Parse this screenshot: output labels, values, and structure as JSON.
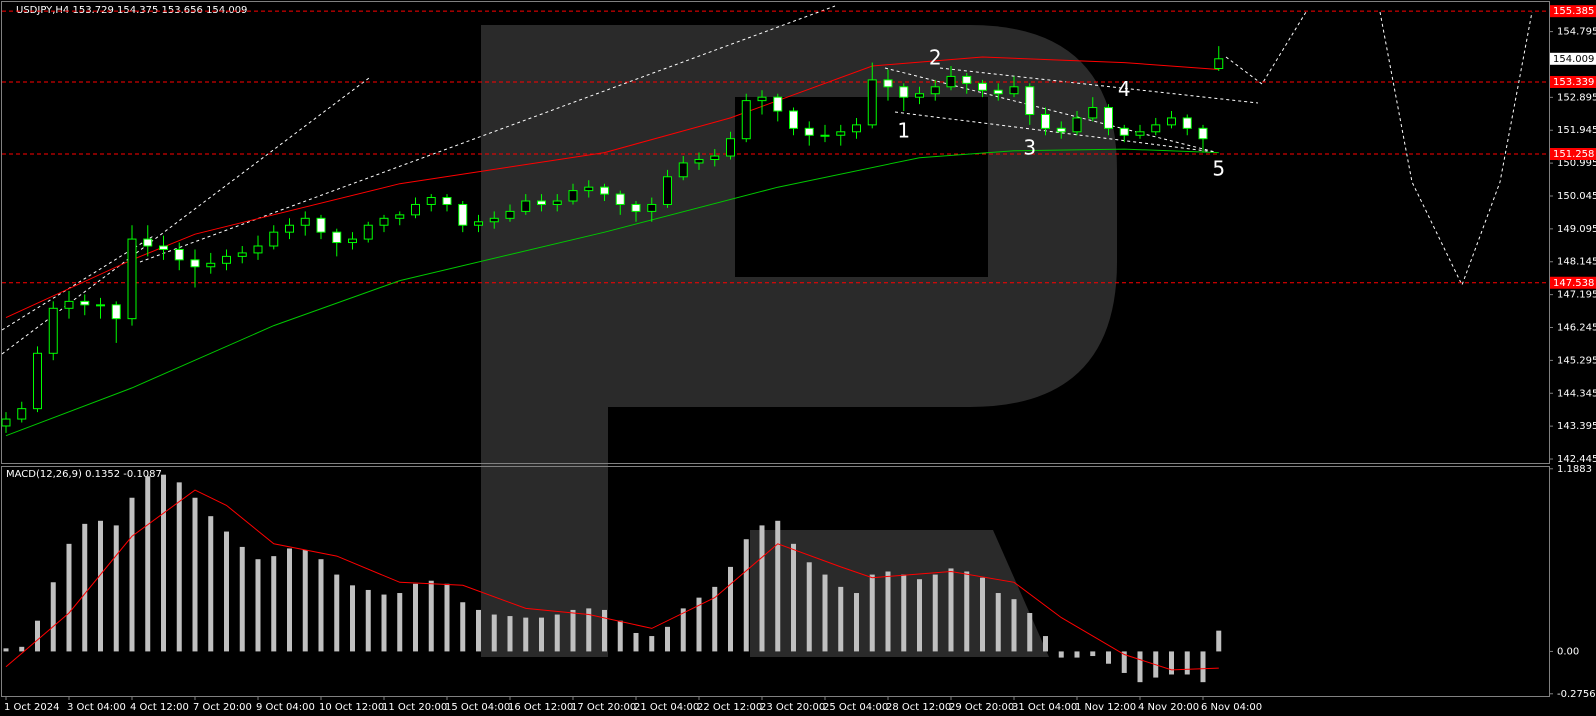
{
  "chart_data": [
    {
      "type": "candlestick",
      "title": "USDJPY,H4  153.729 154.375 153.656 154.009",
      "categories": [
        "1 Oct 2024",
        null,
        null,
        null,
        "3 Oct 04:00",
        null,
        null,
        null,
        "4 Oct 12:00",
        null,
        null,
        null,
        "7 Oct 20:00",
        null,
        null,
        null,
        "9 Oct 04:00",
        null,
        null,
        null,
        "10 Oct 12:00",
        null,
        null,
        null,
        "11 Oct 20:00",
        null,
        null,
        null,
        "15 Oct 04:00",
        null,
        null,
        null,
        "16 Oct 12:00",
        null,
        null,
        null,
        "17 Oct 20:00",
        null,
        null,
        null,
        "21 Oct 04:00",
        null,
        null,
        null,
        "22 Oct 12:00",
        null,
        null,
        null,
        "23 Oct 20:00",
        null,
        null,
        null,
        "25 Oct 04:00",
        null,
        null,
        null,
        "28 Oct 12:00",
        null,
        null,
        null,
        "29 Oct 20:00",
        null,
        null,
        null,
        "31 Oct 04:00",
        null,
        null,
        null,
        "1 Nov 12:00",
        null,
        null,
        null,
        "4 Nov 20:00",
        null,
        null,
        null,
        "6 Nov 04:00",
        null
      ],
      "candles": [
        [
          143.4,
          143.8,
          143.2,
          143.6
        ],
        [
          143.6,
          144.1,
          143.5,
          143.9
        ],
        [
          143.9,
          145.7,
          143.8,
          145.5
        ],
        [
          145.5,
          147.0,
          145.3,
          146.8
        ],
        [
          146.8,
          147.3,
          146.5,
          147.0
        ],
        [
          147.0,
          147.2,
          146.6,
          146.9
        ],
        [
          146.9,
          147.1,
          146.5,
          146.9
        ],
        [
          146.9,
          147.0,
          145.8,
          146.5
        ],
        [
          146.5,
          149.2,
          146.3,
          148.8
        ],
        [
          148.8,
          149.2,
          148.3,
          148.6
        ],
        [
          148.6,
          148.9,
          148.2,
          148.5
        ],
        [
          148.5,
          148.7,
          147.9,
          148.2
        ],
        [
          148.2,
          148.5,
          147.4,
          148.0
        ],
        [
          148.0,
          148.4,
          147.8,
          148.1
        ],
        [
          148.1,
          148.5,
          147.9,
          148.3
        ],
        [
          148.3,
          148.6,
          148.1,
          148.4
        ],
        [
          148.4,
          148.9,
          148.2,
          148.6
        ],
        [
          148.6,
          149.2,
          148.5,
          149.0
        ],
        [
          149.0,
          149.4,
          148.8,
          149.2
        ],
        [
          149.2,
          149.6,
          148.9,
          149.4
        ],
        [
          149.4,
          149.5,
          148.8,
          149.0
        ],
        [
          149.0,
          149.1,
          148.3,
          148.7
        ],
        [
          148.7,
          149.0,
          148.5,
          148.8
        ],
        [
          148.8,
          149.3,
          148.7,
          149.2
        ],
        [
          149.2,
          149.5,
          149.0,
          149.4
        ],
        [
          149.4,
          149.6,
          149.2,
          149.5
        ],
        [
          149.5,
          150.0,
          149.4,
          149.8
        ],
        [
          149.8,
          150.1,
          149.6,
          150.0
        ],
        [
          150.0,
          150.1,
          149.6,
          149.8
        ],
        [
          149.8,
          149.9,
          149.0,
          149.2
        ],
        [
          149.2,
          149.5,
          149.0,
          149.3
        ],
        [
          149.3,
          149.6,
          149.1,
          149.4
        ],
        [
          149.4,
          149.8,
          149.3,
          149.6
        ],
        [
          149.6,
          150.1,
          149.5,
          149.9
        ],
        [
          149.9,
          150.1,
          149.6,
          149.8
        ],
        [
          149.8,
          150.1,
          149.6,
          149.9
        ],
        [
          149.9,
          150.4,
          149.8,
          150.2
        ],
        [
          150.2,
          150.5,
          150.0,
          150.3
        ],
        [
          150.3,
          150.4,
          149.9,
          150.1
        ],
        [
          150.1,
          150.2,
          149.5,
          149.8
        ],
        [
          149.8,
          149.9,
          149.3,
          149.6
        ],
        [
          149.6,
          150.0,
          149.3,
          149.8
        ],
        [
          149.8,
          150.8,
          149.7,
          150.6
        ],
        [
          150.6,
          151.2,
          150.5,
          151.0
        ],
        [
          151.0,
          151.3,
          150.8,
          151.1
        ],
        [
          151.1,
          151.4,
          150.9,
          151.2
        ],
        [
          151.2,
          151.9,
          151.1,
          151.7
        ],
        [
          151.7,
          153.0,
          151.6,
          152.8
        ],
        [
          152.8,
          153.1,
          152.4,
          152.9
        ],
        [
          152.9,
          153.0,
          152.2,
          152.5
        ],
        [
          152.5,
          152.6,
          151.8,
          152.0
        ],
        [
          152.0,
          152.2,
          151.5,
          151.8
        ],
        [
          151.8,
          152.1,
          151.6,
          151.8
        ],
        [
          151.8,
          152.1,
          151.5,
          151.9
        ],
        [
          151.9,
          152.3,
          151.7,
          152.1
        ],
        [
          152.1,
          153.9,
          152.0,
          153.4
        ],
        [
          153.4,
          153.7,
          152.8,
          153.2
        ],
        [
          153.2,
          153.3,
          152.5,
          152.9
        ],
        [
          152.9,
          153.2,
          152.7,
          153.0
        ],
        [
          153.0,
          153.4,
          152.8,
          153.2
        ],
        [
          153.2,
          153.8,
          153.1,
          153.5
        ],
        [
          153.5,
          153.6,
          153.0,
          153.3
        ],
        [
          153.3,
          153.4,
          152.9,
          153.1
        ],
        [
          153.1,
          153.3,
          152.8,
          153.0
        ],
        [
          153.0,
          153.5,
          152.9,
          153.2
        ],
        [
          153.2,
          153.3,
          152.1,
          152.4
        ],
        [
          152.4,
          152.6,
          151.8,
          152.0
        ],
        [
          152.0,
          152.2,
          151.7,
          151.9
        ],
        [
          151.9,
          152.5,
          151.8,
          152.3
        ],
        [
          152.3,
          152.9,
          152.2,
          152.6
        ],
        [
          152.6,
          152.7,
          151.8,
          152.0
        ],
        [
          152.0,
          152.1,
          151.6,
          151.8
        ],
        [
          151.8,
          152.1,
          151.7,
          151.9
        ],
        [
          151.9,
          152.3,
          151.8,
          152.1
        ],
        [
          152.1,
          152.5,
          152.0,
          152.3
        ],
        [
          152.3,
          152.4,
          151.8,
          152.0
        ],
        [
          152.0,
          152.1,
          151.3,
          151.7
        ],
        [
          153.729,
          154.375,
          153.656,
          154.009
        ]
      ],
      "up_color": "#00ff00",
      "down_color": "#00ff00",
      "series": [
        {
          "color": "#ff0000",
          "x": [
            0,
            8,
            12,
            25,
            38,
            46,
            55,
            62,
            71,
            77
          ],
          "values": [
            146.53,
            148.2,
            148.94,
            150.4,
            151.3,
            152.3,
            153.8,
            154.06,
            153.9,
            153.7
          ]
        },
        {
          "color": "#00c800",
          "x": [
            0,
            8,
            17,
            25,
            38,
            49,
            58,
            64,
            71,
            77
          ],
          "values": [
            143.12,
            144.5,
            146.3,
            147.6,
            149.0,
            150.3,
            151.15,
            151.35,
            151.4,
            151.3
          ]
        }
      ],
      "ylim": [
        142.33,
        155.65
      ],
      "yticks": [
        154.795,
        152.895,
        151.945,
        150.995,
        150.045,
        149.095,
        148.145,
        147.195,
        146.245,
        145.295,
        144.345,
        143.395,
        142.445
      ],
      "hlines": [
        155.385,
        153.339,
        151.258,
        147.538
      ],
      "hline_color": "#ff0000",
      "last_price": 154.009,
      "annotations": [
        {
          "text": "1",
          "x": 57,
          "y": 151.9
        },
        {
          "text": "2",
          "x": 59,
          "y": 154.0
        },
        {
          "text": "3",
          "x": 65,
          "y": 151.4
        },
        {
          "text": "4",
          "x": 71,
          "y": 153.1
        },
        {
          "text": "5",
          "x": 77,
          "y": 150.8
        }
      ]
    },
    {
      "type": "bar",
      "title": "MACD(12,26,9) 0.1352 -0.1087",
      "series": [
        {
          "style": "bar",
          "color": "#c0c0c0",
          "values": [
            0.02,
            0.03,
            0.2,
            0.45,
            0.7,
            0.83,
            0.85,
            0.82,
            1.0,
            1.14,
            1.15,
            1.1,
            1.0,
            0.88,
            0.78,
            0.68,
            0.6,
            0.62,
            0.67,
            0.66,
            0.6,
            0.5,
            0.43,
            0.4,
            0.37,
            0.38,
            0.44,
            0.46,
            0.44,
            0.32,
            0.27,
            0.24,
            0.23,
            0.22,
            0.22,
            0.24,
            0.27,
            0.28,
            0.27,
            0.2,
            0.12,
            0.1,
            0.16,
            0.28,
            0.35,
            0.42,
            0.55,
            0.73,
            0.82,
            0.85,
            0.7,
            0.58,
            0.5,
            0.42,
            0.38,
            0.5,
            0.52,
            0.5,
            0.47,
            0.5,
            0.54,
            0.52,
            0.48,
            0.38,
            0.34,
            0.25,
            0.1,
            -0.04,
            -0.04,
            -0.03,
            -0.08,
            -0.14,
            -0.2,
            -0.17,
            -0.15,
            -0.15,
            -0.2,
            0.1352
          ]
        },
        {
          "style": "line",
          "color": "#ff0000",
          "x": [
            0,
            4,
            8,
            12,
            14,
            17,
            21,
            25,
            29,
            33,
            37,
            41,
            45,
            49,
            53,
            55,
            60,
            64,
            67,
            71,
            74,
            77
          ],
          "values": [
            -0.1,
            0.25,
            0.75,
            1.05,
            0.95,
            0.7,
            0.62,
            0.45,
            0.43,
            0.28,
            0.24,
            0.15,
            0.35,
            0.7,
            0.55,
            0.48,
            0.52,
            0.45,
            0.22,
            -0.02,
            -0.12,
            -0.1087
          ]
        }
      ],
      "ylim": [
        -0.29,
        1.2
      ],
      "yticks": [
        1.1883,
        {
          "value": 0,
          "label": "0.00"
        },
        -0.2756
      ]
    }
  ]
}
